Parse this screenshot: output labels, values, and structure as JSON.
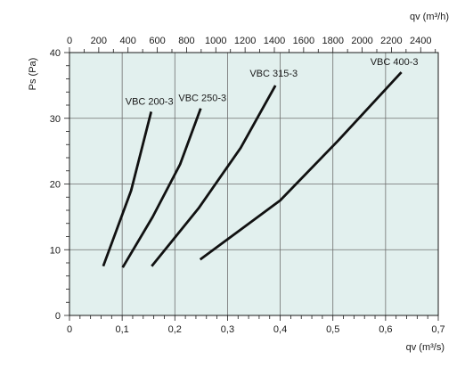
{
  "chart_data": {
    "type": "line",
    "title": "",
    "xlabel": "qv (m³/s)",
    "x2label": "qv (m³/h)",
    "ylabel": "Ps (Pa)",
    "xlim": [
      0,
      0.7
    ],
    "ylim": [
      0,
      40
    ],
    "x2lim": [
      0,
      2520
    ],
    "xticks": [
      0,
      0.1,
      0.2,
      0.3,
      0.4,
      0.5,
      0.6,
      0.7
    ],
    "xtick_labels": [
      "0",
      "0,1",
      "0,2",
      "0,3",
      "0,4",
      "0,5",
      "0,6",
      "0,7"
    ],
    "x2ticks": [
      0,
      200,
      400,
      600,
      800,
      1000,
      1200,
      1400,
      1600,
      1800,
      2000,
      2200,
      2400
    ],
    "x2tick_labels": [
      "0",
      "200",
      "400",
      "600",
      "800",
      "1000",
      "1200",
      "1400",
      "1600",
      "1800",
      "2000",
      "2200",
      "2400"
    ],
    "yticks": [
      0,
      10,
      20,
      30,
      40
    ],
    "ytick_labels": [
      "0",
      "10",
      "20",
      "30",
      "40"
    ],
    "grid": true,
    "background_color": "#e2f0ee",
    "line_color": "#111111",
    "grid_color": "#6f6f6f",
    "series": [
      {
        "name": "VBC 200-3",
        "x": [
          0.064,
          0.117,
          0.155
        ],
        "y": [
          7.5,
          19,
          31
        ]
      },
      {
        "name": "VBC 250-3",
        "x": [
          0.101,
          0.158,
          0.21,
          0.249
        ],
        "y": [
          7.3,
          15,
          23,
          31.5
        ]
      },
      {
        "name": "VBC 315-3",
        "x": [
          0.156,
          0.245,
          0.325,
          0.391
        ],
        "y": [
          7.5,
          16.3,
          25.5,
          35
        ]
      },
      {
        "name": "VBC 400-3",
        "x": [
          0.248,
          0.4,
          0.51,
          0.63
        ],
        "y": [
          8.5,
          17.5,
          26.6,
          37
        ]
      }
    ]
  }
}
